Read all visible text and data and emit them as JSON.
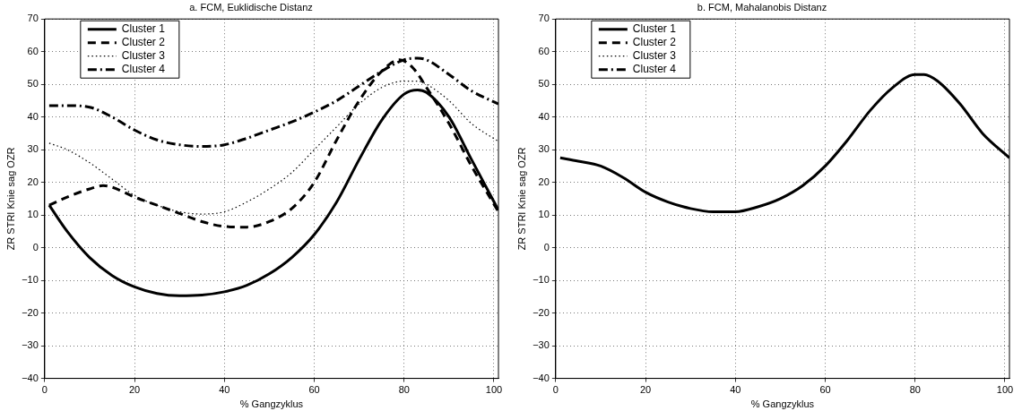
{
  "chart_data": [
    {
      "type": "line",
      "title": "a. FCM, Euklidische Distanz",
      "xlabel": "% Gangzyklus",
      "ylabel": "ZR STRI Knie sag OZR",
      "xlim": [
        0,
        101
      ],
      "xticks": [
        0,
        20,
        40,
        60,
        80,
        100
      ],
      "ylim": [
        -40,
        70
      ],
      "yticks": [
        -40,
        -30,
        -20,
        -10,
        0,
        10,
        20,
        30,
        40,
        50,
        60,
        70
      ],
      "grid": true,
      "legend": "top left",
      "marker": "none",
      "series": [
        {
          "name": "Cluster 1",
          "color": "#000000",
          "line_style": "solid",
          "x": [
            1,
            5,
            10,
            15,
            20,
            25,
            30,
            35,
            40,
            45,
            50,
            55,
            60,
            65,
            70,
            75,
            80,
            83,
            85,
            90,
            95,
            101
          ],
          "values": [
            13,
            5,
            -3,
            -8.5,
            -12,
            -14,
            -14.7,
            -14.5,
            -13.5,
            -11.5,
            -8,
            -3,
            4,
            14,
            27,
            39,
            47,
            48.3,
            47.5,
            40,
            27,
            11.5
          ]
        },
        {
          "name": "Cluster 2",
          "color": "#000000",
          "line_style": "dashed",
          "x": [
            1,
            5,
            10,
            13,
            15,
            20,
            25,
            30,
            35,
            40,
            45,
            50,
            55,
            60,
            65,
            70,
            75,
            79,
            82,
            85,
            90,
            95,
            101
          ],
          "values": [
            13,
            15.5,
            18,
            19,
            18.5,
            15.5,
            13,
            10.5,
            8,
            6.5,
            6.3,
            8,
            12,
            20,
            33,
            45,
            54,
            57.5,
            55,
            49,
            38,
            25,
            11
          ]
        },
        {
          "name": "Cluster 3",
          "color": "#000000",
          "line_style": "dotted",
          "x": [
            1,
            5,
            10,
            15,
            20,
            25,
            30,
            35,
            40,
            45,
            50,
            55,
            60,
            65,
            70,
            75,
            80,
            83,
            85,
            90,
            95,
            101
          ],
          "values": [
            32,
            30,
            26,
            21,
            16,
            13,
            11,
            10.3,
            11,
            14,
            18,
            23,
            30,
            37,
            44,
            49,
            51,
            51,
            50,
            45,
            38,
            32.5
          ]
        },
        {
          "name": "Cluster 4",
          "color": "#000000",
          "line_style": "dashdot",
          "x": [
            1,
            5,
            10,
            15,
            20,
            25,
            30,
            35,
            40,
            45,
            50,
            55,
            60,
            65,
            70,
            75,
            80,
            83,
            85,
            90,
            95,
            101
          ],
          "values": [
            43.5,
            43.5,
            43,
            40,
            36,
            33,
            31.5,
            31,
            31.5,
            33.5,
            36,
            38.5,
            41.5,
            45,
            49.5,
            54,
            57.5,
            58,
            57.5,
            53,
            48,
            44
          ]
        }
      ]
    },
    {
      "type": "line",
      "title": "b. FCM, Mahalanobis Distanz",
      "xlabel": "% Gangzyklus",
      "ylabel": "ZR STRI Knie sag OZR",
      "xlim": [
        0,
        101
      ],
      "xticks": [
        0,
        20,
        40,
        60,
        80,
        100
      ],
      "ylim": [
        -40,
        70
      ],
      "yticks": [
        -40,
        -30,
        -20,
        -10,
        0,
        10,
        20,
        30,
        40,
        50,
        60,
        70
      ],
      "grid": true,
      "legend": "top left",
      "marker": "none",
      "series": [
        {
          "name": "Cluster 1",
          "color": "#000000",
          "line_style": "solid",
          "x": [
            1,
            5,
            10,
            15,
            20,
            25,
            30,
            35,
            40,
            45,
            50,
            55,
            60,
            65,
            70,
            75,
            80,
            82,
            85,
            90,
            95,
            101
          ],
          "values": [
            27.5,
            26.5,
            25,
            21.5,
            17,
            14,
            12,
            11,
            11,
            12.5,
            15,
            19,
            25,
            33,
            42,
            49,
            53,
            53,
            51,
            44,
            35,
            27.5
          ]
        },
        {
          "name": "Cluster 2",
          "color": "#000000",
          "line_style": "dashed",
          "values": [
            null
          ]
        },
        {
          "name": "Cluster 3",
          "color": "#000000",
          "line_style": "dotted",
          "values": [
            null
          ]
        },
        {
          "name": "Cluster 4",
          "color": "#000000",
          "line_style": "dashdot",
          "values": [
            null
          ]
        }
      ]
    }
  ]
}
